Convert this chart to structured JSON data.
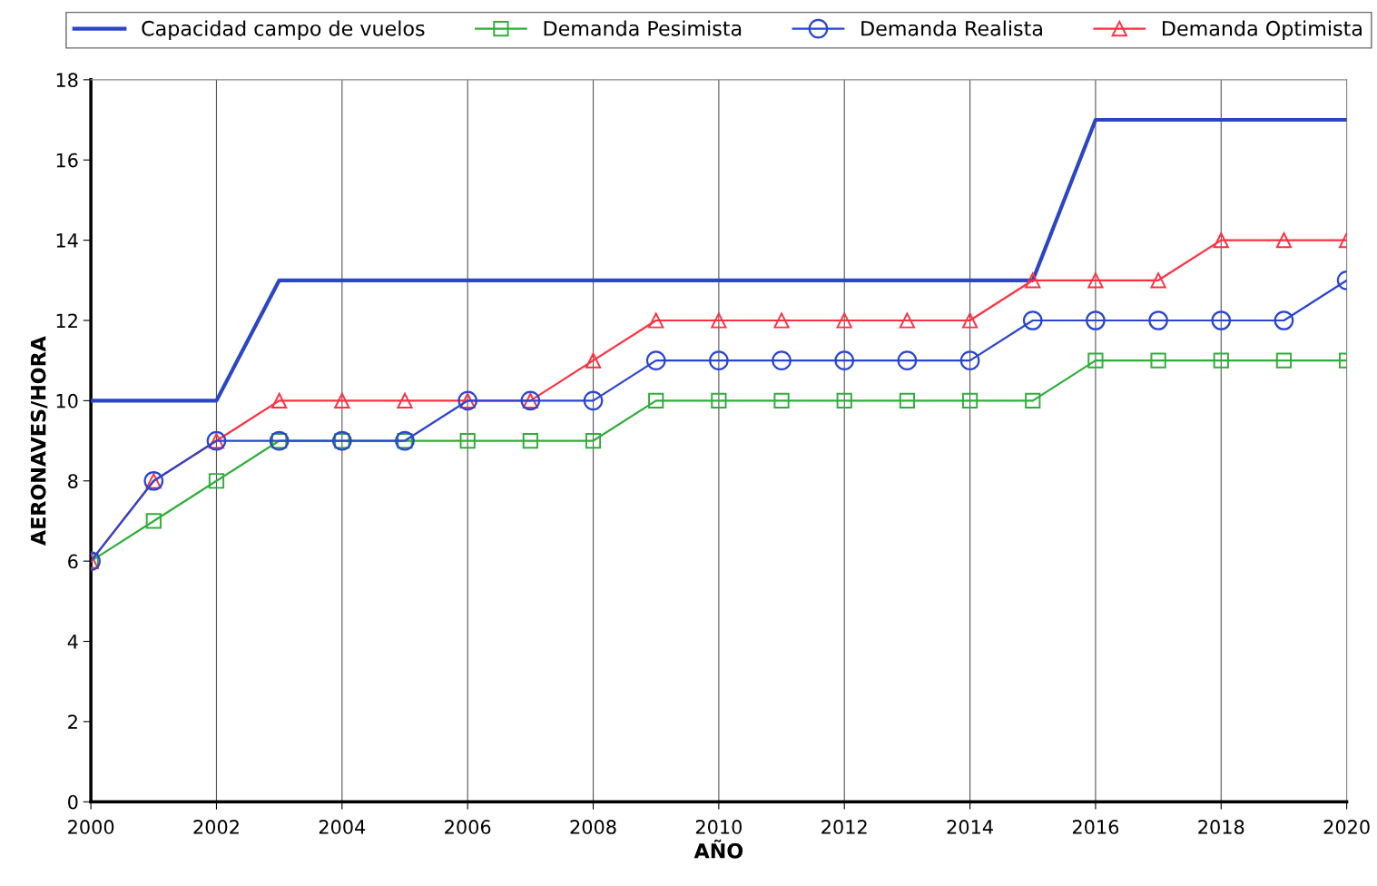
{
  "chart_data": {
    "type": "line",
    "xlabel": "AÑO",
    "ylabel": "AERONAVES/HORA",
    "xlim": [
      2000,
      2020
    ],
    "xticks": [
      2000,
      2002,
      2004,
      2006,
      2008,
      2010,
      2012,
      2014,
      2016,
      2018,
      2020
    ],
    "ylim": [
      0,
      18
    ],
    "yticks": [
      0,
      2,
      4,
      6,
      8,
      10,
      12,
      14,
      16,
      18
    ],
    "grid": "x",
    "legend": "top",
    "x": [
      2000,
      2001,
      2002,
      2003,
      2004,
      2005,
      2006,
      2007,
      2008,
      2009,
      2010,
      2011,
      2012,
      2013,
      2014,
      2015,
      2016,
      2017,
      2018,
      2019,
      2020
    ],
    "series": [
      {
        "name": "Capacidad campo de vuelos",
        "color": "#2a45c8",
        "marker": "none",
        "x": [
          2000,
          2002,
          2003,
          2015,
          2016,
          2020
        ],
        "values": [
          10,
          10,
          13,
          13,
          17,
          17
        ]
      },
      {
        "name": "Demanda Pesimista",
        "color": "#2fae3a",
        "marker": "square",
        "values": [
          6,
          7,
          8,
          9,
          9,
          9,
          9,
          9,
          9,
          10,
          10,
          10,
          10,
          10,
          10,
          10,
          11,
          11,
          11,
          11,
          11
        ]
      },
      {
        "name": "Demanda Realista",
        "color": "#2a45d0",
        "marker": "circle",
        "values": [
          6,
          8,
          9,
          9,
          9,
          9,
          10,
          10,
          10,
          11,
          11,
          11,
          11,
          11,
          11,
          12,
          12,
          12,
          12,
          12,
          13
        ]
      },
      {
        "name": "Demanda Optimista",
        "color": "#ff3040",
        "marker": "triangle",
        "values": [
          6,
          8,
          9,
          10,
          10,
          10,
          10,
          10,
          11,
          12,
          12,
          12,
          12,
          12,
          12,
          13,
          13,
          13,
          14,
          14,
          14
        ]
      }
    ]
  }
}
